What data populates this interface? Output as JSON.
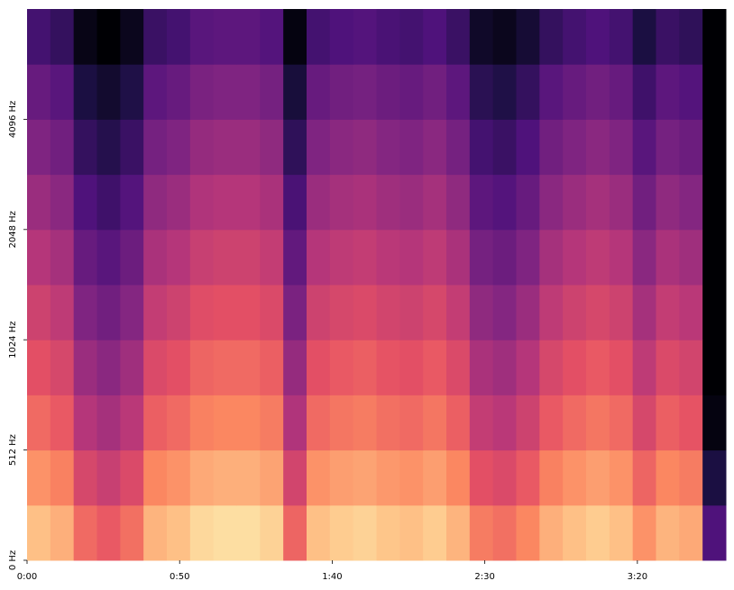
{
  "chart_data": {
    "type": "heatmap",
    "colormap": "magma",
    "yscale": "symlog",
    "linthresh": 512,
    "xlim": [
      0,
      229
    ],
    "ylim": [
      0,
      8192
    ],
    "zlim": [
      -80,
      0
    ],
    "xticks": [
      {
        "value": 0,
        "label": "0:00"
      },
      {
        "value": 50,
        "label": "0:50"
      },
      {
        "value": 100,
        "label": "1:40"
      },
      {
        "value": 150,
        "label": "2:30"
      },
      {
        "value": 200,
        "label": "3:20"
      }
    ],
    "yticks": [
      {
        "value": 0,
        "label": "0 Hz"
      },
      {
        "value": 512,
        "label": "512 Hz"
      },
      {
        "value": 1024,
        "label": "1024 Hz"
      },
      {
        "value": 2048,
        "label": "2048 Hz"
      },
      {
        "value": 4096,
        "label": "4096 Hz"
      }
    ],
    "z": [
      [
        -10,
        -13,
        -25,
        -28,
        -24,
        -12,
        -10,
        -6,
        -5,
        -5,
        -7,
        -26,
        -10,
        -8,
        -7,
        -9,
        -10,
        -8,
        -12,
        -22,
        -24,
        -20,
        -13,
        -10,
        -8,
        -10,
        -18,
        -12,
        -14,
        -60
      ],
      [
        -18,
        -21,
        -33,
        -36,
        -32,
        -20,
        -18,
        -14,
        -13,
        -13,
        -15,
        -34,
        -18,
        -16,
        -15,
        -17,
        -18,
        -16,
        -20,
        -30,
        -32,
        -28,
        -21,
        -18,
        -16,
        -18,
        -26,
        -20,
        -22,
        -70
      ],
      [
        -25,
        -28,
        -40,
        -43,
        -39,
        -27,
        -25,
        -21,
        -20,
        -20,
        -22,
        -41,
        -25,
        -23,
        -22,
        -24,
        -25,
        -23,
        -27,
        -37,
        -39,
        -35,
        -28,
        -25,
        -23,
        -25,
        -33,
        -27,
        -29,
        -78
      ],
      [
        -30,
        -33,
        -45,
        -48,
        -44,
        -32,
        -30,
        -26,
        -25,
        -25,
        -27,
        -46,
        -30,
        -28,
        -27,
        -29,
        -30,
        -28,
        -32,
        -42,
        -44,
        -40,
        -33,
        -30,
        -28,
        -30,
        -38,
        -32,
        -34,
        -80
      ],
      [
        -35,
        -38,
        -50,
        -53,
        -49,
        -37,
        -35,
        -31,
        -30,
        -30,
        -32,
        -51,
        -35,
        -33,
        -32,
        -34,
        -35,
        -33,
        -37,
        -47,
        -49,
        -45,
        -38,
        -35,
        -33,
        -35,
        -43,
        -37,
        -39,
        -80
      ],
      [
        -40,
        -43,
        -55,
        -58,
        -54,
        -42,
        -40,
        -36,
        -35,
        -35,
        -37,
        -56,
        -40,
        -38,
        -37,
        -39,
        -40,
        -38,
        -42,
        -52,
        -54,
        -50,
        -43,
        -40,
        -38,
        -40,
        -48,
        -42,
        -44,
        -80
      ],
      [
        -45,
        -48,
        -60,
        -63,
        -59,
        -47,
        -45,
        -41,
        -40,
        -40,
        -42,
        -61,
        -45,
        -43,
        -42,
        -44,
        -45,
        -43,
        -47,
        -57,
        -59,
        -55,
        -48,
        -45,
        -43,
        -45,
        -53,
        -47,
        -49,
        -80
      ],
      [
        -50,
        -53,
        -65,
        -68,
        -64,
        -52,
        -50,
        -46,
        -45,
        -45,
        -47,
        -66,
        -50,
        -48,
        -47,
        -49,
        -50,
        -48,
        -52,
        -62,
        -64,
        -60,
        -53,
        -50,
        -48,
        -50,
        -58,
        -52,
        -54,
        -80
      ],
      [
        -55,
        -58,
        -70,
        -73,
        -69,
        -57,
        -55,
        -51,
        -50,
        -50,
        -52,
        -71,
        -55,
        -53,
        -52,
        -54,
        -55,
        -53,
        -57,
        -67,
        -69,
        -65,
        -58,
        -55,
        -53,
        -55,
        -63,
        -57,
        -59,
        -80
      ],
      [
        -62,
        -65,
        -77,
        -80,
        -76,
        -64,
        -62,
        -58,
        -57,
        -57,
        -59,
        -78,
        -62,
        -60,
        -59,
        -61,
        -62,
        -60,
        -64,
        -74,
        -76,
        -72,
        -65,
        -62,
        -60,
        -62,
        -70,
        -64,
        -66,
        -80
      ]
    ]
  }
}
